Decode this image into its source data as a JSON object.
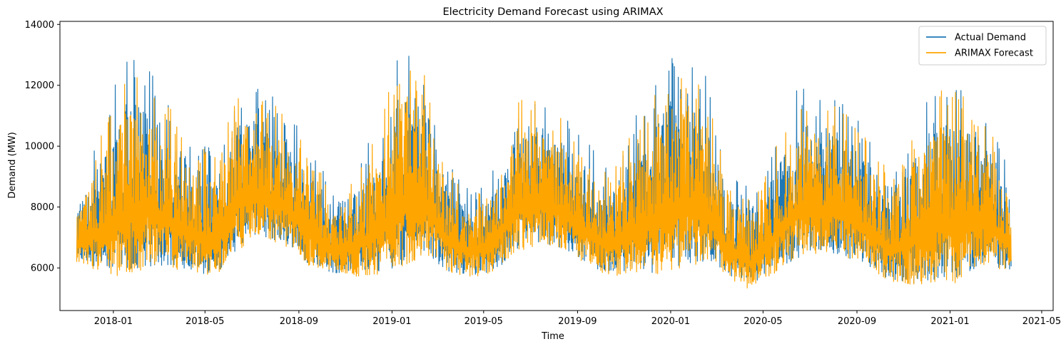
{
  "chart_data": {
    "type": "line",
    "title": "Electricity Demand Forecast using ARIMAX",
    "xlabel": "Time",
    "ylabel": "Demand (MW)",
    "x_range": [
      "2017-10-23",
      "2021-05-16"
    ],
    "x_data_range": [
      "2017-11-14",
      "2021-03-22"
    ],
    "ylim": [
      4600,
      14100
    ],
    "y_ticks": [
      6000,
      8000,
      10000,
      12000,
      14000
    ],
    "x_ticks": [
      "2018-01",
      "2018-05",
      "2018-09",
      "2019-01",
      "2019-05",
      "2019-09",
      "2020-01",
      "2020-05",
      "2020-09",
      "2021-01",
      "2021-05"
    ],
    "grid": false,
    "legend_position": "top-right",
    "series": [
      {
        "name": "Actual Demand",
        "color": "#1f77b4",
        "line_width": 1.5,
        "envelope": {
          "dates": [
            "2017-11-14",
            "2017-12-15",
            "2018-01-15",
            "2018-02-15",
            "2018-03-15",
            "2018-04-15",
            "2018-05-15",
            "2018-06-15",
            "2018-07-15",
            "2018-08-15",
            "2018-09-15",
            "2018-10-15",
            "2018-11-15",
            "2018-12-15",
            "2019-01-15",
            "2019-02-15",
            "2019-03-15",
            "2019-04-15",
            "2019-05-15",
            "2019-06-15",
            "2019-07-15",
            "2019-08-15",
            "2019-09-15",
            "2019-10-15",
            "2019-11-15",
            "2019-12-15",
            "2020-01-15",
            "2020-02-15",
            "2020-03-15",
            "2020-04-15",
            "2020-05-15",
            "2020-06-15",
            "2020-07-15",
            "2020-08-15",
            "2020-09-15",
            "2020-10-15",
            "2020-11-15",
            "2020-12-15",
            "2021-01-15",
            "2021-02-15",
            "2021-03-15",
            "2021-03-22"
          ],
          "max": [
            8450,
            10500,
            12950,
            12850,
            11550,
            10400,
            9900,
            12050,
            11900,
            11300,
            10000,
            8700,
            9200,
            11000,
            13650,
            12700,
            9500,
            8800,
            9400,
            12050,
            11700,
            11050,
            10100,
            9200,
            11100,
            12200,
            13600,
            12450,
            9100,
            8600,
            10000,
            11950,
            11700,
            11600,
            10400,
            9400,
            10800,
            12400,
            12200,
            11400,
            9550,
            8550
          ],
          "min": [
            6000,
            5750,
            5400,
            5700,
            5800,
            5600,
            5550,
            6400,
            6800,
            6500,
            5900,
            5700,
            5600,
            5550,
            5700,
            6100,
            5700,
            5600,
            5700,
            6300,
            6600,
            6400,
            5800,
            5600,
            5600,
            5500,
            5600,
            5900,
            5600,
            5300,
            5650,
            6000,
            6300,
            6100,
            5800,
            5400,
            5200,
            5250,
            5300,
            5900,
            5750,
            5750
          ]
        }
      },
      {
        "name": "ARIMAX Forecast",
        "color": "#ffa500",
        "line_width": 1.5,
        "envelope": {
          "dates": [
            "2017-11-14",
            "2017-12-15",
            "2018-01-15",
            "2018-02-15",
            "2018-03-15",
            "2018-04-15",
            "2018-05-15",
            "2018-06-15",
            "2018-07-15",
            "2018-08-15",
            "2018-09-15",
            "2018-10-15",
            "2018-11-15",
            "2018-12-15",
            "2019-01-15",
            "2019-02-15",
            "2019-03-15",
            "2019-04-15",
            "2019-05-15",
            "2019-06-15",
            "2019-07-15",
            "2019-08-15",
            "2019-09-15",
            "2019-10-15",
            "2019-11-15",
            "2019-12-15",
            "2020-01-15",
            "2020-02-15",
            "2020-03-15",
            "2020-04-15",
            "2020-05-15",
            "2020-06-15",
            "2020-07-15",
            "2020-08-15",
            "2020-09-15",
            "2020-10-15",
            "2020-11-15",
            "2020-12-15",
            "2021-01-15",
            "2021-02-15",
            "2021-03-15",
            "2021-03-22"
          ],
          "max": [
            8400,
            10300,
            12600,
            12500,
            11300,
            10200,
            9700,
            11800,
            11600,
            11100,
            9800,
            8500,
            9000,
            10800,
            13300,
            12400,
            9300,
            8600,
            9200,
            11800,
            11400,
            10900,
            9900,
            9000,
            10900,
            11900,
            13200,
            12100,
            8900,
            8400,
            9800,
            11700,
            11400,
            11400,
            10200,
            9200,
            10600,
            12000,
            11900,
            11200,
            9300,
            8500
          ],
          "min": [
            5950,
            5700,
            5300,
            5650,
            5750,
            5550,
            5500,
            6350,
            6750,
            6450,
            5850,
            5650,
            5550,
            5500,
            5650,
            6050,
            5650,
            5550,
            5650,
            6250,
            6550,
            6350,
            5750,
            5550,
            5550,
            5450,
            5550,
            5850,
            5550,
            5050,
            5600,
            5950,
            6250,
            6050,
            5750,
            5350,
            5150,
            5200,
            5100,
            5850,
            5700,
            5700
          ]
        }
      }
    ]
  }
}
